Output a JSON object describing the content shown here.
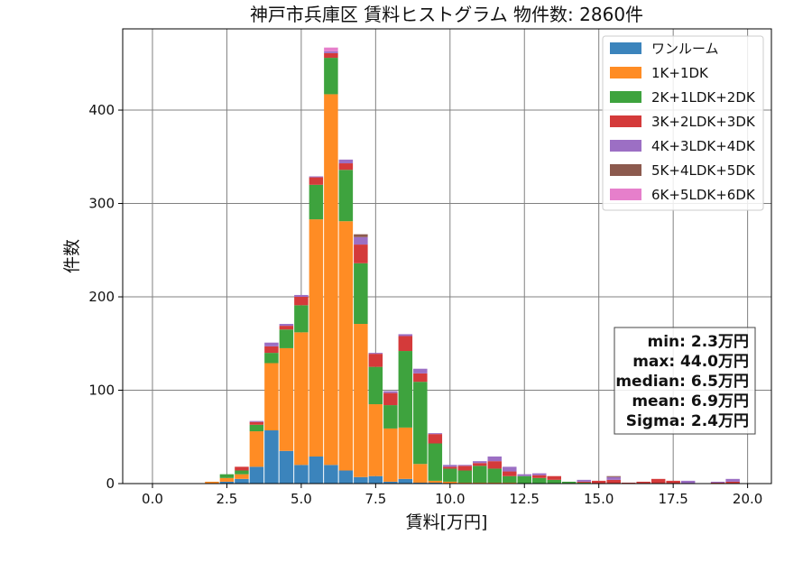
{
  "chart_data": {
    "type": "bar",
    "stacked": true,
    "title": "神戸市兵庫区 賃料ヒストグラム  物件数: 2860件",
    "xlabel": "賃料[万円]",
    "ylabel": "件数",
    "xlim": [
      -1.0,
      20.8
    ],
    "ylim": [
      0,
      487
    ],
    "xticks": [
      0.0,
      2.5,
      5.0,
      7.5,
      10.0,
      12.5,
      15.0,
      17.5,
      20.0
    ],
    "xtick_labels": [
      "0.0",
      "2.5",
      "5.0",
      "7.5",
      "10.0",
      "12.5",
      "15.0",
      "17.5",
      "20.0"
    ],
    "yticks": [
      0,
      100,
      200,
      300,
      400
    ],
    "ytick_labels": [
      "0",
      "100",
      "200",
      "300",
      "400"
    ],
    "grid": true,
    "legend_position": "top-right",
    "bin_width": 0.5,
    "bin_starts": [
      1.75,
      2.25,
      2.75,
      3.25,
      3.75,
      4.25,
      4.75,
      5.25,
      5.75,
      6.25,
      6.75,
      7.25,
      7.75,
      8.25,
      8.75,
      9.25,
      9.75,
      10.25,
      10.75,
      11.25,
      11.75,
      12.25,
      12.75,
      13.25,
      13.75,
      14.25,
      14.75,
      15.25,
      15.75,
      16.25,
      16.75,
      17.25,
      17.75,
      18.25,
      18.75,
      19.25
    ],
    "series": [
      {
        "name": "ワンルーム",
        "color": "#3b84bc",
        "values": [
          0,
          2,
          5,
          18,
          57,
          35,
          20,
          29,
          20,
          14,
          7,
          8,
          2,
          5,
          1,
          1,
          0,
          0,
          0,
          0,
          0,
          0,
          0,
          0,
          0,
          0,
          0,
          0,
          0,
          0,
          0,
          0,
          0,
          0,
          0,
          0
        ]
      },
      {
        "name": "1K+1DK",
        "color": "#ff8c24",
        "values": [
          2,
          4,
          5,
          38,
          72,
          110,
          142,
          254,
          397,
          267,
          164,
          77,
          57,
          55,
          20,
          2,
          2,
          1,
          1,
          1,
          1,
          0,
          0,
          0,
          0,
          0,
          0,
          0,
          0,
          0,
          0,
          0,
          0,
          0,
          0,
          0
        ]
      },
      {
        "name": "2K+1LDK+2DK",
        "color": "#3ea33e",
        "values": [
          0,
          4,
          4,
          7,
          11,
          20,
          29,
          37,
          39,
          55,
          65,
          40,
          25,
          82,
          88,
          40,
          14,
          13,
          18,
          15,
          7,
          8,
          6,
          4,
          2,
          1,
          0,
          0,
          0,
          0,
          0,
          0,
          0,
          0,
          0,
          0
        ]
      },
      {
        "name": "3K+2LDK+3DK",
        "color": "#d43a3a",
        "values": [
          0,
          0,
          4,
          3,
          7,
          4,
          9,
          8,
          5,
          7,
          20,
          14,
          13,
          16,
          9,
          10,
          2,
          5,
          3,
          8,
          5,
          0,
          3,
          4,
          0,
          1,
          3,
          4,
          1,
          2,
          5,
          3,
          0,
          0,
          1,
          2
        ]
      },
      {
        "name": "4K+3LDK+4DK",
        "color": "#9c6fc4",
        "values": [
          0,
          0,
          0,
          1,
          4,
          2,
          2,
          1,
          2,
          4,
          8,
          1,
          2,
          2,
          5,
          1,
          2,
          1,
          2,
          5,
          5,
          2,
          2,
          0,
          0,
          2,
          0,
          3,
          0,
          0,
          0,
          0,
          3,
          0,
          1,
          3
        ]
      },
      {
        "name": "5K+4LDK+5DK",
        "color": "#8c5a4e",
        "values": [
          0,
          0,
          0,
          0,
          0,
          0,
          0,
          0,
          0,
          0,
          3,
          0,
          0,
          0,
          0,
          0,
          0,
          0,
          0,
          0,
          0,
          0,
          0,
          0,
          0,
          0,
          0,
          1,
          0,
          0,
          0,
          0,
          0,
          0,
          0,
          0
        ]
      },
      {
        "name": "6K+5LDK+6DK",
        "color": "#e67fcb",
        "values": [
          0,
          0,
          0,
          0,
          0,
          0,
          0,
          0,
          4,
          0,
          0,
          0,
          0,
          0,
          0,
          0,
          0,
          0,
          0,
          0,
          0,
          0,
          0,
          0,
          0,
          0,
          0,
          0,
          0,
          0,
          0,
          0,
          0,
          0,
          0,
          0
        ]
      }
    ],
    "stats": [
      "min: 2.3万円",
      "max: 44.0万円",
      "median: 6.5万円",
      "mean: 6.9万円",
      "Sigma: 2.4万円"
    ]
  }
}
